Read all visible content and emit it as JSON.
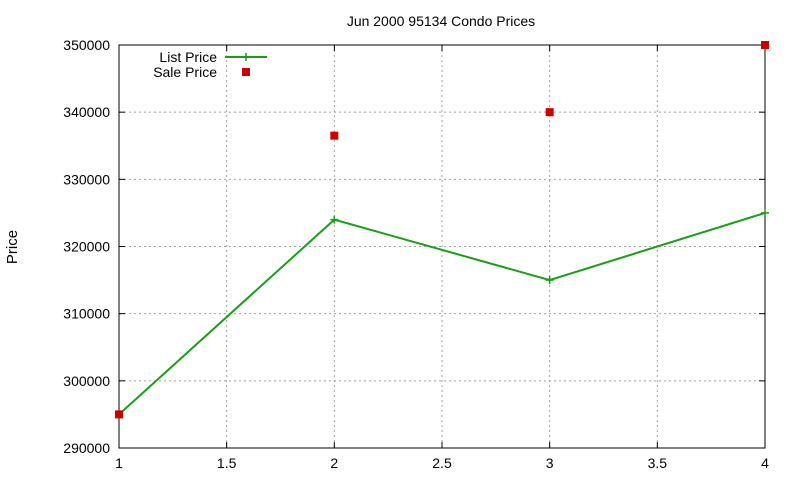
{
  "chart_data": {
    "type": "line",
    "title": "Jun 2000 95134 Condo Prices",
    "xlabel": "",
    "ylabel": "Price",
    "xlim": [
      1,
      4
    ],
    "ylim": [
      290000,
      350000
    ],
    "x_ticks": [
      "1",
      "1.5",
      "2",
      "2.5",
      "3",
      "3.5",
      "4"
    ],
    "y_ticks": [
      "290000",
      "300000",
      "310000",
      "320000",
      "330000",
      "340000",
      "350000"
    ],
    "grid": true,
    "legend_position": "top-left",
    "series": [
      {
        "name": "List Price",
        "style": "line-points",
        "marker": "plus",
        "color": "#1a9e1a",
        "x": [
          1,
          2,
          3,
          4
        ],
        "y": [
          295000,
          324000,
          315000,
          325000
        ]
      },
      {
        "name": "Sale Price",
        "style": "points",
        "marker": "square",
        "color": "#cc0000",
        "x": [
          1,
          2,
          3,
          4
        ],
        "y": [
          295000,
          336500,
          340000,
          350000
        ]
      }
    ]
  }
}
